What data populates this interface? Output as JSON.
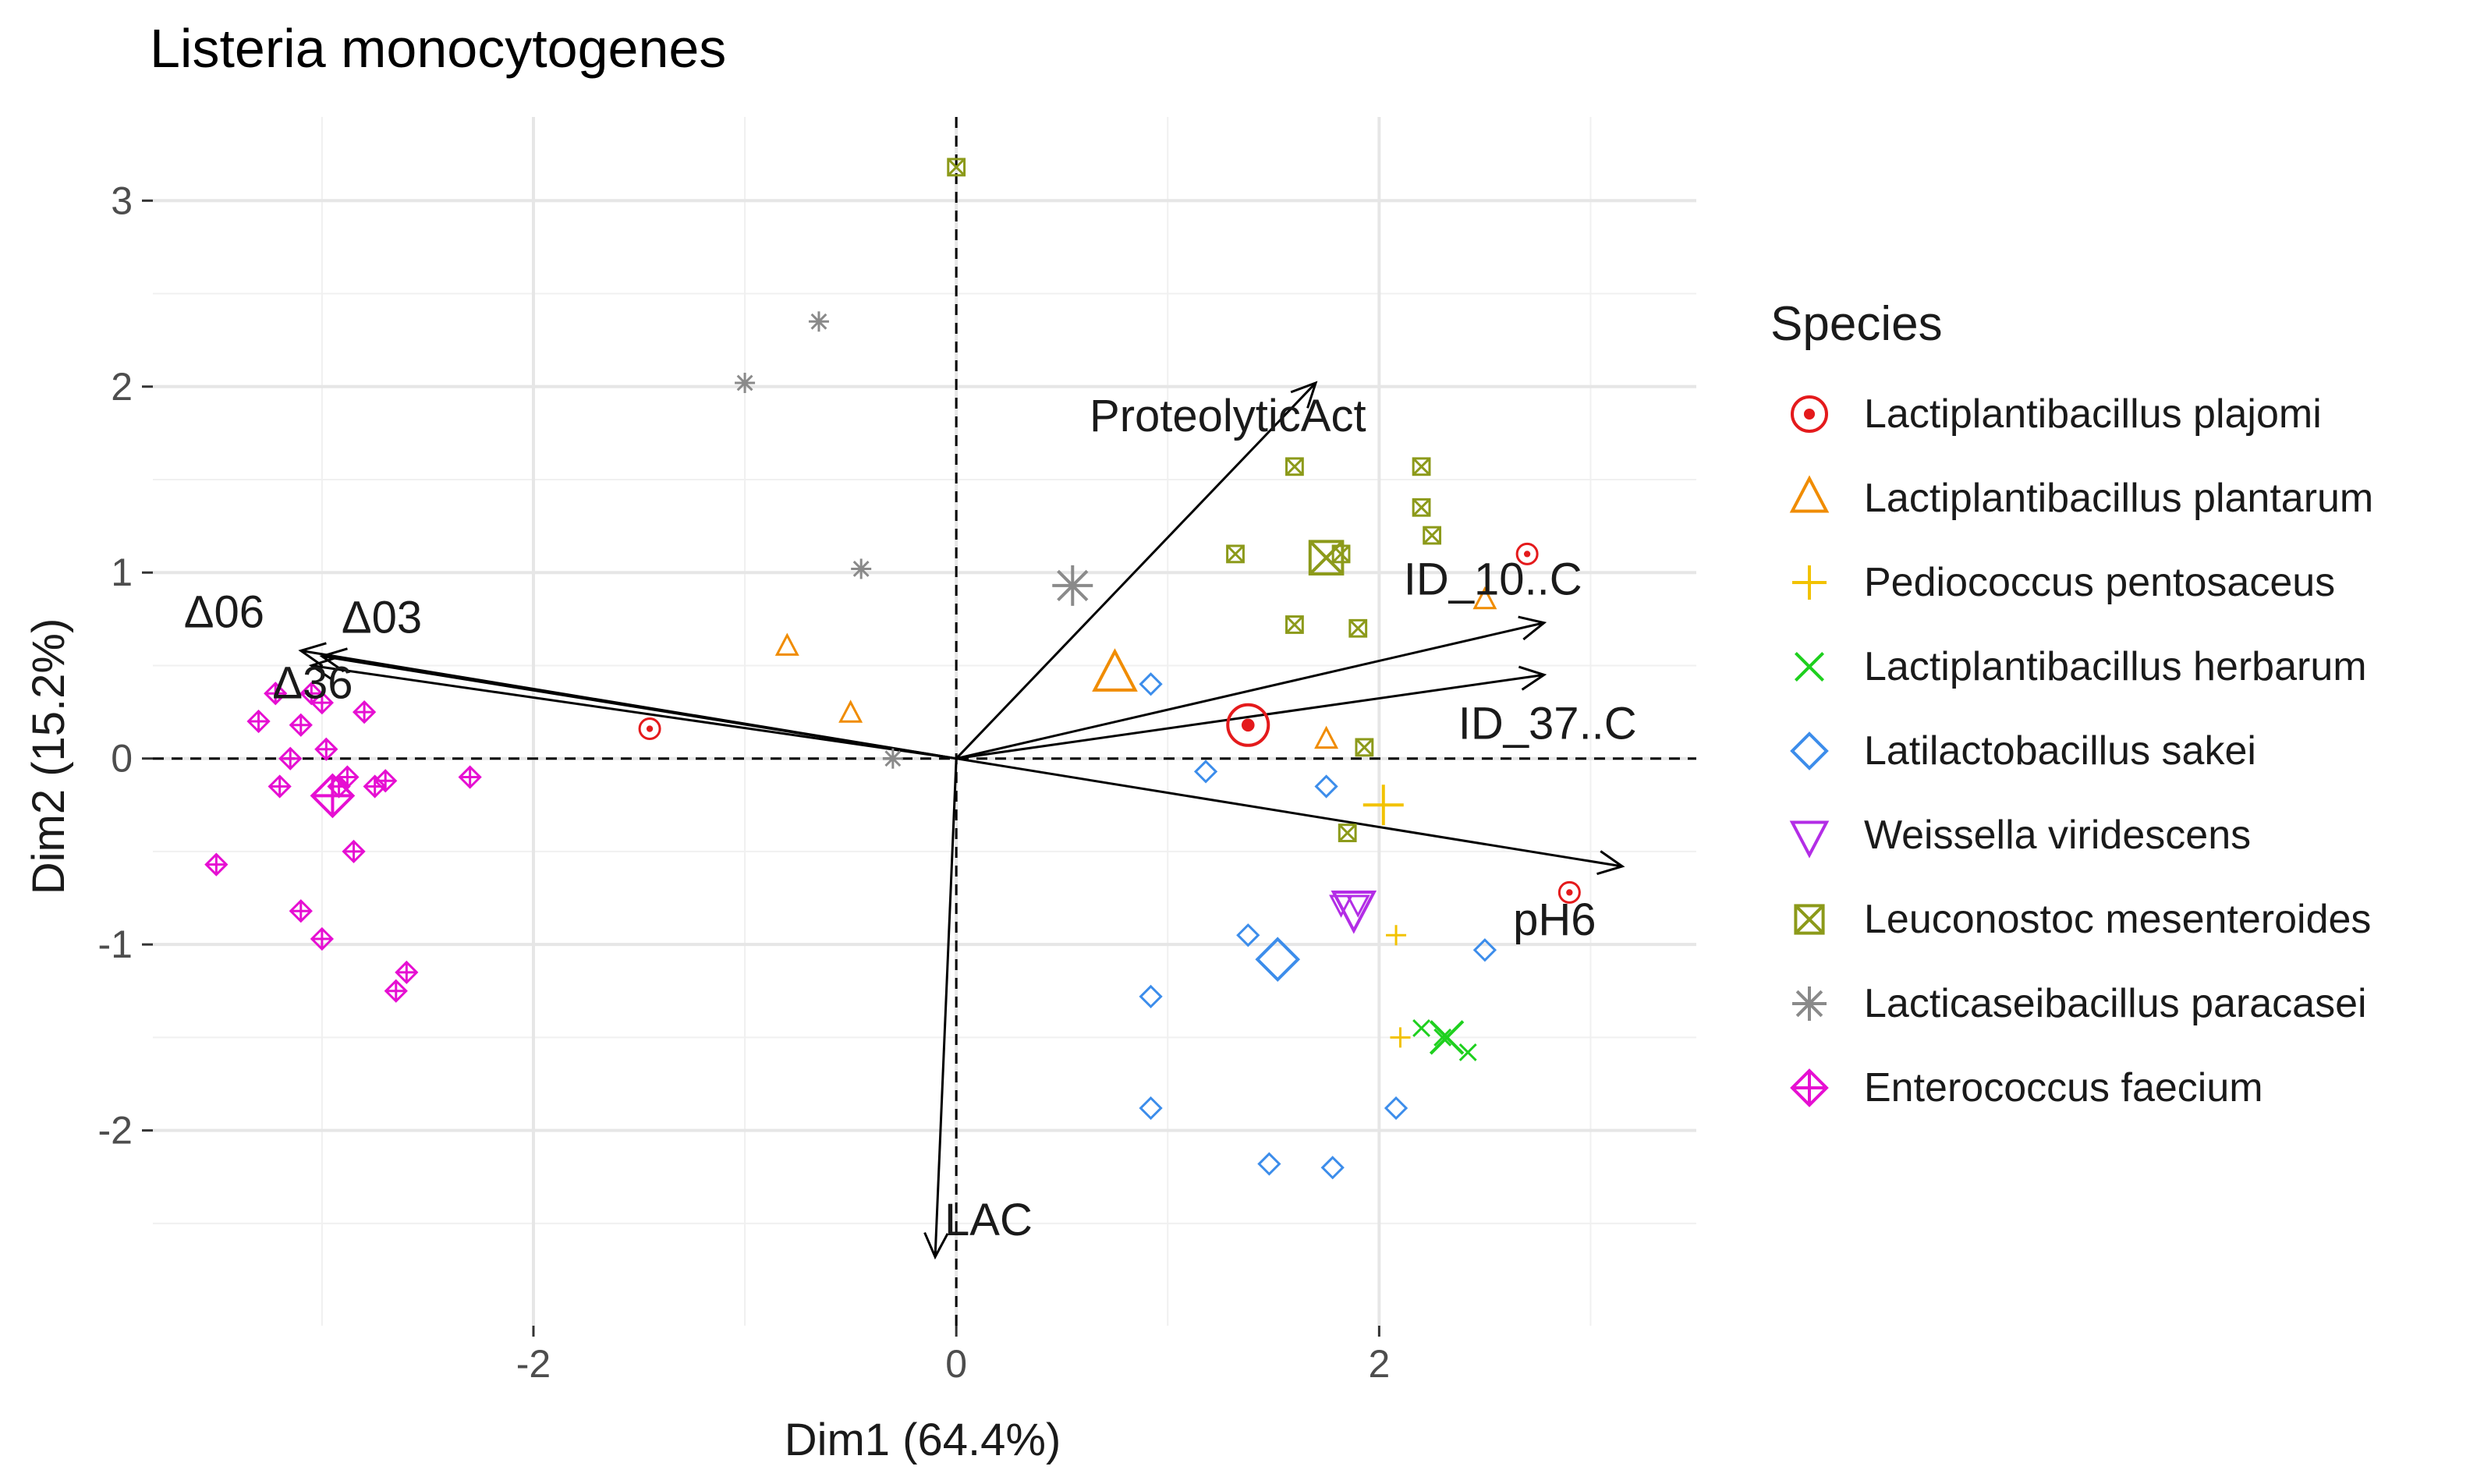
{
  "chart_data": {
    "type": "scatter",
    "title": "Listeria monocytogenes",
    "xlabel": "Dim1 (64.4%)",
    "ylabel": "Dim2 (15.2%)",
    "xlim": [
      -3.8,
      3.5
    ],
    "ylim": [
      -3.05,
      3.45
    ],
    "x_ticks": [
      -2,
      0,
      2
    ],
    "y_ticks": [
      -2,
      -1,
      0,
      1,
      2,
      3
    ],
    "x_tick_labels": [
      "-2",
      "0",
      "2"
    ],
    "y_tick_labels": [
      "-2",
      "-1",
      "0",
      "1",
      "2",
      "3"
    ],
    "grid": true,
    "legend_position": "right",
    "legend_title": "Species",
    "series": [
      {
        "name": "Lactiplantibacillus plajomi",
        "color": "#E41A1C",
        "marker": "circle-dot",
        "points": [
          [
            -1.45,
            0.16
          ],
          [
            2.7,
            1.1
          ],
          [
            2.9,
            -0.72
          ]
        ],
        "centroid": [
          1.38,
          0.18
        ]
      },
      {
        "name": "Lactiplantibacillus plantarum",
        "color": "#F08C00",
        "marker": "triangle-up",
        "points": [
          [
            -0.8,
            0.6
          ],
          [
            -0.5,
            0.24
          ],
          [
            1.75,
            0.1
          ],
          [
            2.5,
            0.85
          ]
        ],
        "centroid": [
          0.75,
          0.45
        ]
      },
      {
        "name": "Pediococcus pentosaceus",
        "color": "#F2C200",
        "marker": "plus",
        "points": [
          [
            2.08,
            -0.95
          ],
          [
            2.1,
            -1.5
          ]
        ],
        "centroid": [
          2.02,
          -0.25
        ]
      },
      {
        "name": "Lactiplantibacillus herbarum",
        "color": "#1ED01E",
        "marker": "x",
        "points": [
          [
            2.2,
            -1.45
          ],
          [
            2.3,
            -1.5
          ],
          [
            2.42,
            -1.58
          ]
        ],
        "centroid": [
          2.32,
          -1.5
        ]
      },
      {
        "name": "Latilactobacillus sakei",
        "color": "#3C8DEB",
        "marker": "diamond",
        "points": [
          [
            0.92,
            0.4
          ],
          [
            1.18,
            -0.07
          ],
          [
            1.75,
            -0.15
          ],
          [
            0.92,
            -1.28
          ],
          [
            0.92,
            -1.88
          ],
          [
            1.38,
            -0.95
          ],
          [
            1.48,
            -2.18
          ],
          [
            1.78,
            -2.2
          ],
          [
            2.08,
            -1.88
          ],
          [
            2.5,
            -1.03
          ]
        ],
        "centroid": [
          1.52,
          -1.08
        ]
      },
      {
        "name": "Weissella viridescens",
        "color": "#B32DE6",
        "marker": "triangle-down",
        "points": [
          [
            1.82,
            -0.78
          ],
          [
            1.9,
            -0.78
          ]
        ],
        "centroid": [
          1.88,
          -0.8
        ]
      },
      {
        "name": "Leuconostoc mesenteroides",
        "color": "#8C9A1A",
        "marker": "square-x",
        "points": [
          [
            0,
            3.18
          ],
          [
            1.6,
            1.57
          ],
          [
            2.2,
            1.57
          ],
          [
            2.2,
            1.35
          ],
          [
            2.25,
            1.2
          ],
          [
            1.32,
            1.1
          ],
          [
            1.82,
            1.1
          ],
          [
            1.6,
            0.72
          ],
          [
            1.9,
            0.7
          ],
          [
            1.93,
            0.06
          ],
          [
            1.85,
            -0.4
          ]
        ],
        "centroid": [
          1.75,
          1.08
        ]
      },
      {
        "name": "Lacticaseibacillus paracasei",
        "color": "#8A8A8A",
        "marker": "asterisk",
        "points": [
          [
            -1.0,
            2.02
          ],
          [
            -0.65,
            2.35
          ],
          [
            -0.45,
            1.02
          ],
          [
            -0.3,
            0.0
          ]
        ],
        "centroid": [
          0.55,
          0.93
        ]
      },
      {
        "name": "Enterococcus faecium",
        "color": "#E60FD2",
        "marker": "diamond-plus",
        "points": [
          [
            -3.5,
            -0.57
          ],
          [
            -3.3,
            0.2
          ],
          [
            -3.22,
            0.35
          ],
          [
            -3.2,
            -0.15
          ],
          [
            -3.15,
            0.0
          ],
          [
            -3.1,
            0.18
          ],
          [
            -3.05,
            0.35
          ],
          [
            -3.0,
            0.3
          ],
          [
            -2.98,
            0.05
          ],
          [
            -2.92,
            -0.15
          ],
          [
            -2.88,
            -0.1
          ],
          [
            -2.8,
            0.25
          ],
          [
            -2.75,
            -0.15
          ],
          [
            -2.7,
            -0.12
          ],
          [
            -2.85,
            -0.5
          ],
          [
            -3.1,
            -0.82
          ],
          [
            -3.0,
            -0.97
          ],
          [
            -2.6,
            -1.15
          ],
          [
            -2.65,
            -1.25
          ],
          [
            -2.3,
            -0.1
          ]
        ],
        "centroid": [
          -2.95,
          -0.2
        ]
      }
    ],
    "arrows": [
      {
        "label": "ProteolyticAct",
        "x": 1.7,
        "y": 2.02
      },
      {
        "label": "Δ06",
        "x": -3.1,
        "y": 0.58
      },
      {
        "label": "Δ03",
        "x": -3.0,
        "y": 0.55
      },
      {
        "label": "Δ36",
        "x": -3.05,
        "y": 0.5
      },
      {
        "label": "ID_10..C",
        "x": 2.78,
        "y": 0.73
      },
      {
        "label": "ID_37..C",
        "x": 2.78,
        "y": 0.45
      },
      {
        "label": "pH6",
        "x": 3.15,
        "y": -0.58
      },
      {
        "label": "LAC",
        "x": -0.1,
        "y": -2.68
      }
    ]
  }
}
